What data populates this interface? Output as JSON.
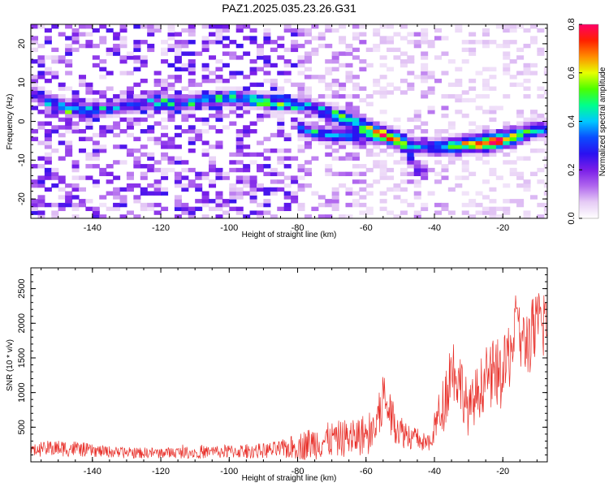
{
  "title": "PAZ1.2025.035.23.26.G31",
  "chart_data": [
    {
      "type": "heatmap",
      "xlabel": "Height of straight line (km)",
      "ylabel": "Frequency (Hz)",
      "xlim": [
        -158,
        -7
      ],
      "ylim": [
        -25,
        25
      ],
      "xticks": [
        -140,
        -120,
        -100,
        -80,
        -60,
        -40,
        -20
      ],
      "yticks": [
        -20,
        -10,
        0,
        10,
        20
      ],
      "colorbar": {
        "label": "Normalized spectral amplitude",
        "range": [
          0,
          0.8
        ],
        "ticks": [
          "0.0",
          "0.2",
          "0.4",
          "0.6",
          "0.8"
        ],
        "colormap": [
          "#ffffff",
          "#e6ccf5",
          "#b066ee",
          "#7a1ee8",
          "#2a10f0",
          "#0a4cff",
          "#00c8ff",
          "#00ff8c",
          "#4cff00",
          "#e6ff00",
          "#ff8c00",
          "#ff2000",
          "#ff0066"
        ]
      },
      "ridge": {
        "x": [
          -157,
          -152,
          -147,
          -142,
          -137,
          -132,
          -127,
          -122,
          -117,
          -112,
          -107,
          -102,
          -97,
          -92,
          -87,
          -82,
          -77,
          -72,
          -67,
          -62,
          -57,
          -52,
          -47,
          -42,
          -37,
          -32,
          -27,
          -22,
          -17,
          -12,
          -8
        ],
        "frequency_hz": [
          7,
          5,
          3.5,
          3,
          3,
          4,
          4.5,
          5,
          5,
          5,
          5.5,
          6,
          6,
          5.5,
          5,
          4.5,
          4,
          2.5,
          1,
          -0.5,
          -2.5,
          -4,
          -6,
          -6.5,
          -6.5,
          -6,
          -5.5,
          -5,
          -4,
          -2.5,
          -2
        ],
        "amplitude": [
          0.25,
          0.3,
          0.35,
          0.3,
          0.25,
          0.25,
          0.25,
          0.25,
          0.25,
          0.25,
          0.25,
          0.3,
          0.3,
          0.3,
          0.3,
          0.3,
          0.25,
          0.35,
          0.4,
          0.4,
          0.45,
          0.4,
          0.3,
          0.3,
          0.4,
          0.55,
          0.65,
          0.75,
          0.55,
          0.4,
          0.35
        ]
      },
      "secondary_ridge": {
        "x": [
          -80,
          -75,
          -70,
          -65,
          -60,
          -55,
          -50,
          -47,
          -45,
          -43
        ],
        "frequency_hz": [
          -1.5,
          -3,
          -3.5,
          -3.5,
          -3.5,
          -4,
          -5,
          -9,
          -12,
          -13
        ],
        "amplitude": [
          0.3,
          0.35,
          0.3,
          0.3,
          0.3,
          0.3,
          0.3,
          0.25,
          0.25,
          0.2
        ]
      }
    },
    {
      "type": "line",
      "xlabel": "Height of straight line (km)",
      "ylabel": "SNR (10 * v/v)",
      "xlim": [
        -158,
        -7
      ],
      "ylim": [
        0,
        2800
      ],
      "xticks": [
        -140,
        -120,
        -100,
        -80,
        -60,
        -40,
        -20
      ],
      "yticks": [
        500,
        1000,
        1500,
        2000,
        2500
      ],
      "color": "#e8302a",
      "envelope": {
        "x": [
          -158,
          -152,
          -145,
          -140,
          -130,
          -120,
          -110,
          -100,
          -90,
          -85,
          -80,
          -75,
          -70,
          -65,
          -60,
          -57,
          -55,
          -53,
          -50,
          -47,
          -44,
          -41,
          -40,
          -37,
          -35,
          -32,
          -30,
          -28,
          -25,
          -22,
          -20,
          -18,
          -16,
          -14,
          -12,
          -10,
          -8,
          -7
        ],
        "mean": [
          150,
          200,
          190,
          160,
          130,
          130,
          140,
          150,
          160,
          180,
          220,
          280,
          320,
          350,
          400,
          500,
          950,
          700,
          450,
          380,
          300,
          250,
          500,
          900,
          1400,
          1100,
          700,
          950,
          1200,
          1300,
          1200,
          1600,
          1900,
          1700,
          1800,
          1900,
          2100,
          1900
        ],
        "spread": [
          80,
          120,
          120,
          90,
          80,
          80,
          90,
          100,
          110,
          130,
          200,
          250,
          260,
          280,
          300,
          400,
          450,
          350,
          250,
          200,
          150,
          120,
          250,
          450,
          500,
          450,
          350,
          400,
          450,
          500,
          500,
          550,
          550,
          500,
          550,
          550,
          650,
          600
        ]
      }
    }
  ]
}
